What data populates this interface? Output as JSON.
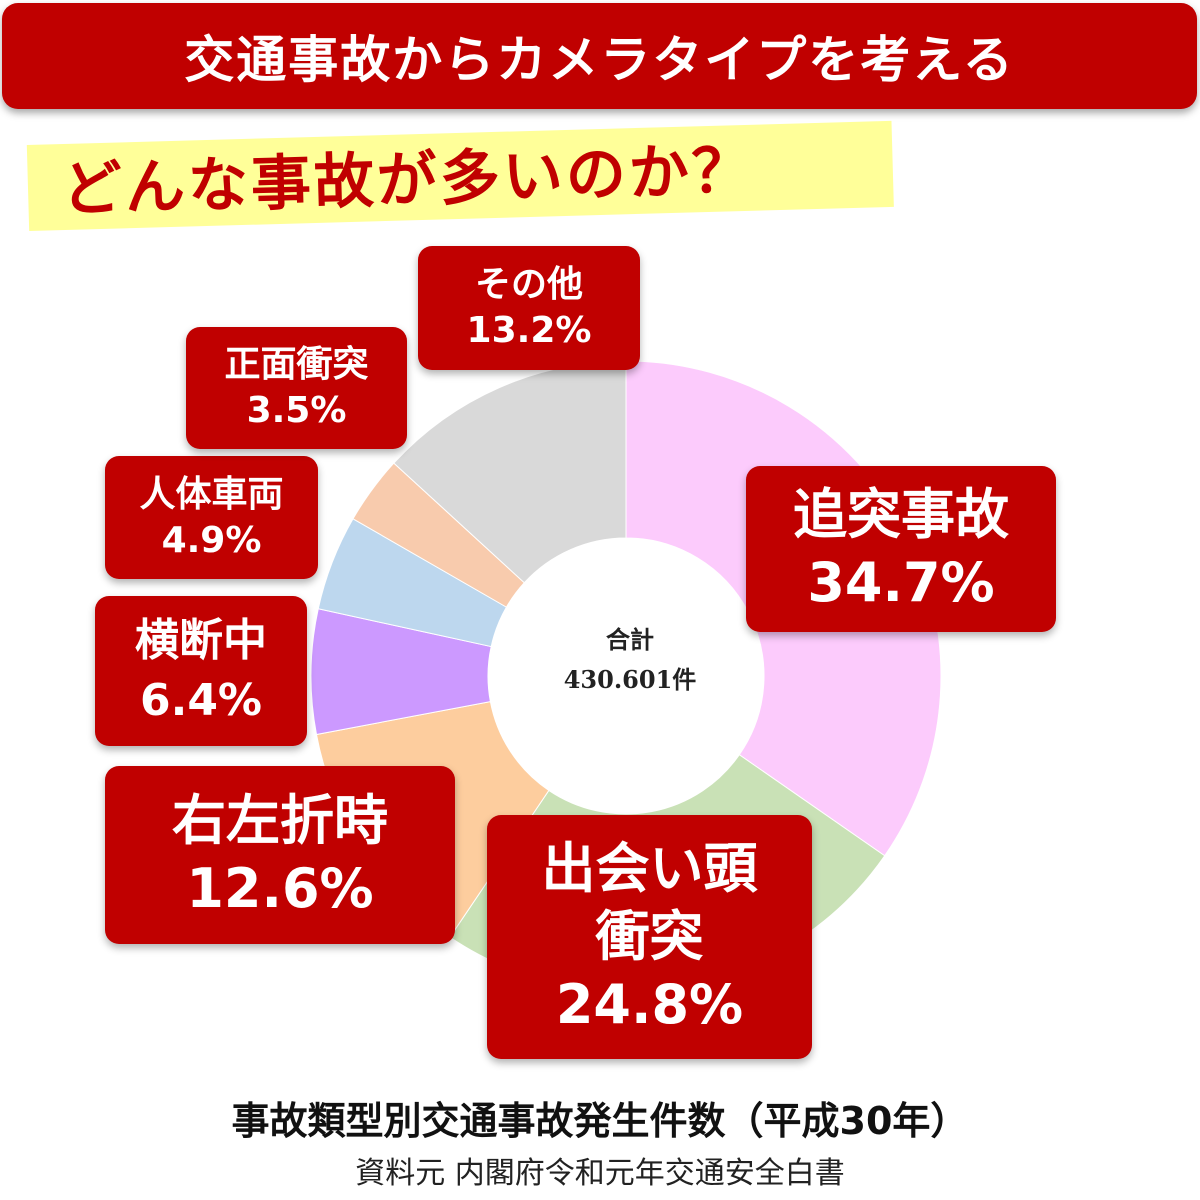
{
  "header": {
    "title": "交通事故からカメラタイプを考える"
  },
  "subtitle": "どんな事故が多いのか？",
  "center": {
    "label": "合計",
    "total": "430.601件"
  },
  "footer": {
    "title": "事故類型別交通事故発生件数（平成30年）",
    "source": "資料元 内閣府令和元年交通安全白書"
  },
  "chart_data": {
    "type": "pie",
    "title": "事故類型別交通事故発生件数（平成30年）",
    "slices": [
      {
        "name": "追突事故",
        "value": 34.7,
        "label": "34.7%",
        "color": "#fccbfc"
      },
      {
        "name": "出会い頭衝突",
        "value": 24.8,
        "label": "24.8%",
        "color": "#c9e1b6"
      },
      {
        "name": "右左折時",
        "value": 12.6,
        "label": "12.6%",
        "color": "#fdcd9e"
      },
      {
        "name": "横断中",
        "value": 6.4,
        "label": "6.4%",
        "color": "#cc99ff"
      },
      {
        "name": "人体車両",
        "value": 4.9,
        "label": "4.9%",
        "color": "#bdd7ee"
      },
      {
        "name": "正面衝突",
        "value": 3.5,
        "label": "3.5%",
        "color": "#f8cbad"
      },
      {
        "name": "その他",
        "value": 13.2,
        "label": "13.2%",
        "color": "#d9d9d9"
      }
    ]
  }
}
